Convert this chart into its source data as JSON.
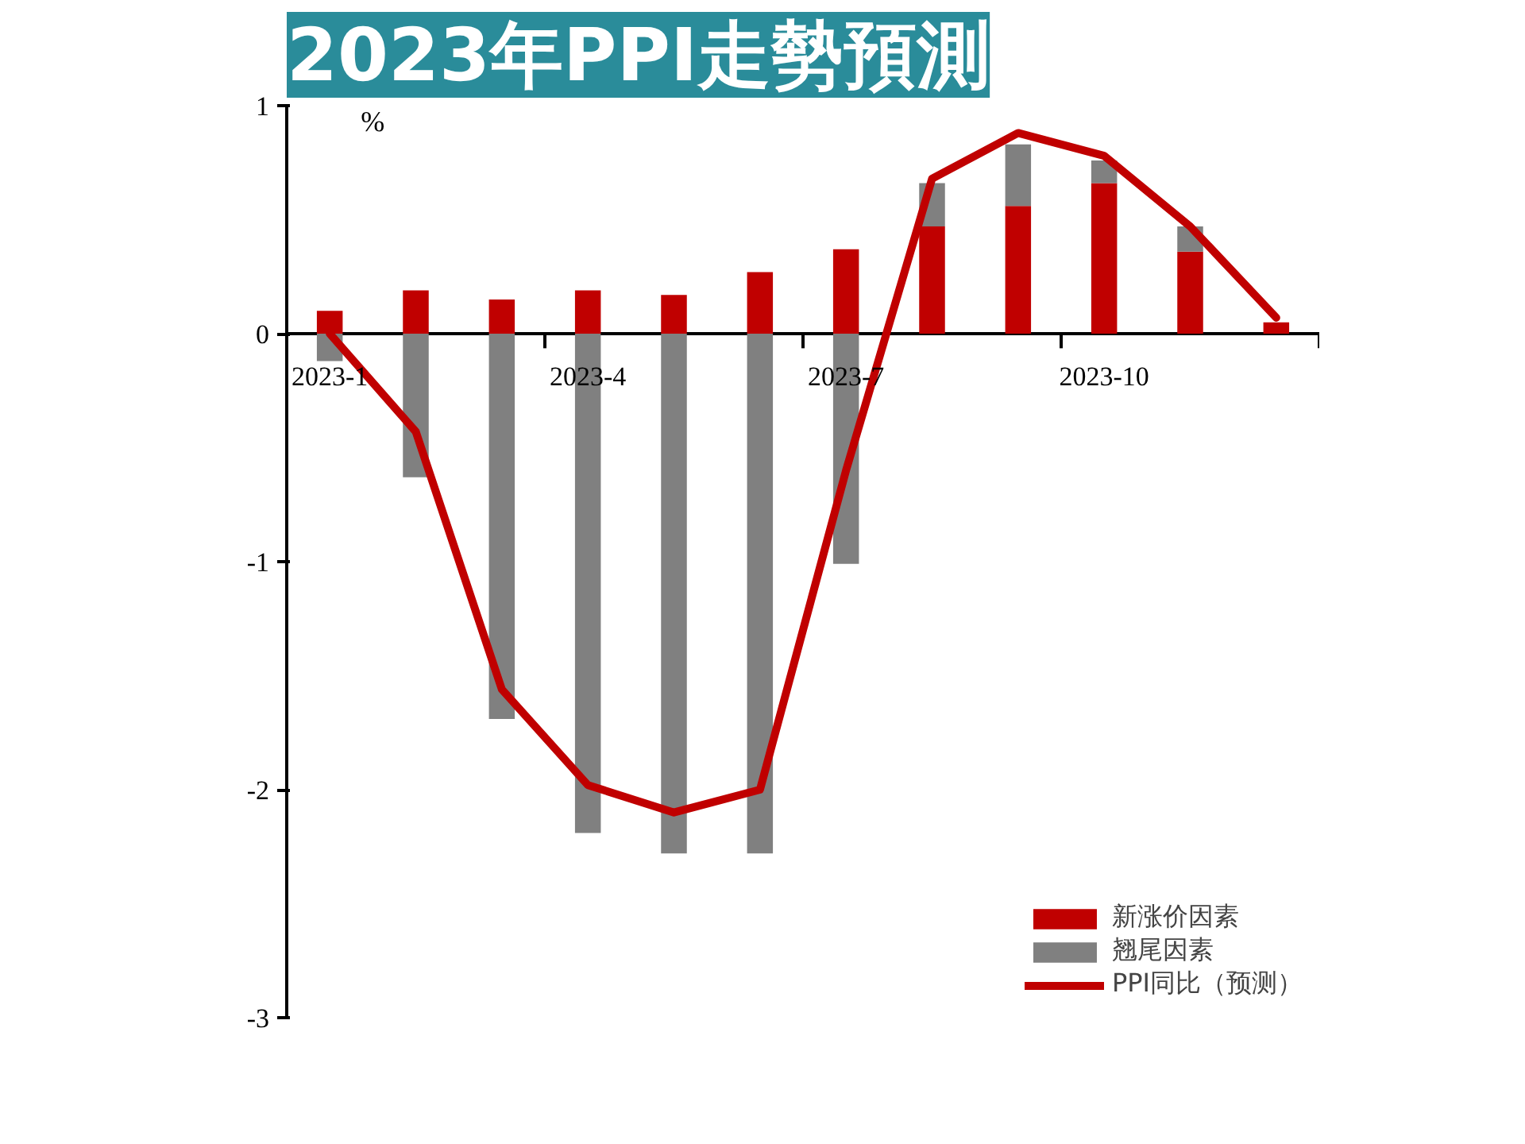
{
  "chart_data": {
    "type": "bar",
    "title": "2023年PPI走勢預測",
    "ylabel": "%",
    "stacked": true,
    "grid": false,
    "legend": "bottom right",
    "categories": [
      "2023-1",
      null,
      null,
      "2023-4",
      null,
      null,
      "2023-7",
      null,
      null,
      "2023-10",
      null,
      null
    ],
    "ylim": [
      -3,
      1
    ],
    "yticks": [
      -3,
      -2,
      -1,
      0,
      1
    ],
    "series": [
      {
        "name": "新涨价因素",
        "color": "#c00000",
        "values": [
          0.1,
          0.19,
          0.15,
          0.19,
          0.17,
          0.27,
          0.37,
          0.47,
          0.56,
          0.66,
          0.36,
          0.05
        ]
      },
      {
        "name": "翘尾因素",
        "color": "#808080",
        "values": [
          -0.12,
          -0.63,
          -1.69,
          -2.19,
          -2.28,
          -2.28,
          -1.01,
          0.19,
          0.27,
          0.1,
          0.11,
          null
        ]
      },
      {
        "name": "PPI同比（预测）",
        "type": "line",
        "color": "#c00000",
        "values": [
          0,
          -0.43,
          -1.56,
          -1.98,
          -2.1,
          -2.0,
          -0.6,
          0.68,
          0.88,
          0.78,
          0.47,
          0.07
        ]
      }
    ]
  }
}
